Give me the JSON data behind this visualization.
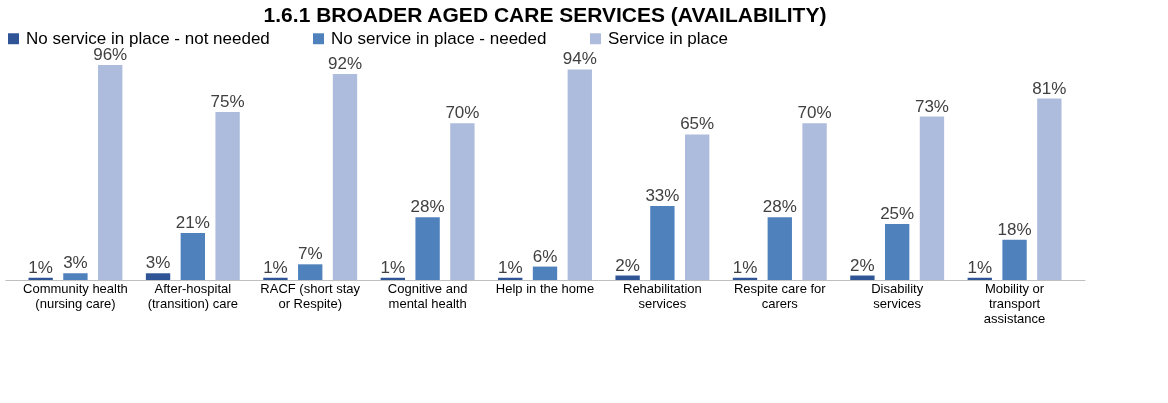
{
  "chart_data": {
    "type": "bar",
    "title": "1.6.1 BROADER AGED CARE SERVICES (AVAILABILITY)",
    "categories": [
      "Community health (nursing care)",
      "After-hospital (transition) care",
      "RACF (short stay or Respite)",
      "Cognitive and mental health",
      "Help in the home",
      "Rehabilitation services",
      "Respite care for carers",
      "Disability services",
      "Mobility or transport assistance"
    ],
    "series": [
      {
        "name": "No service in place - not needed",
        "color": "#2f5597",
        "values": [
          1,
          3,
          1,
          1,
          1,
          2,
          1,
          2,
          1
        ],
        "value_labels": [
          "1%",
          "3%",
          "1%",
          "1%",
          "1%",
          "2%",
          "1%",
          "2%",
          "1%"
        ]
      },
      {
        "name": "No service in place - needed",
        "color": "#4f81bd",
        "values": [
          3,
          21,
          7,
          28,
          6,
          33,
          28,
          25,
          18
        ],
        "value_labels": [
          "3%",
          "21%",
          "7%",
          "28%",
          "6%",
          "33%",
          "28%",
          "25%",
          "18%"
        ]
      },
      {
        "name": "Service in place",
        "color": "#adbcdc",
        "values": [
          96,
          75,
          92,
          70,
          94,
          65,
          70,
          73,
          81
        ],
        "value_labels": [
          "96%",
          "75%",
          "92%",
          "70%",
          "94%",
          "65%",
          "70%",
          "73%",
          "81%"
        ]
      }
    ],
    "legend": "top",
    "grid": false
  }
}
